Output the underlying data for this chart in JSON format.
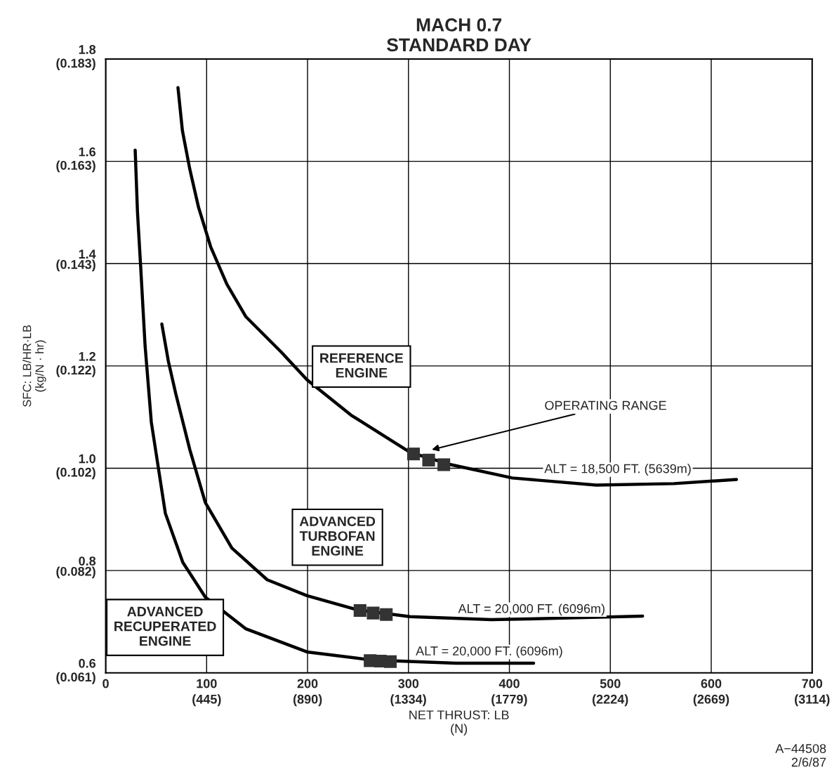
{
  "chart_data": {
    "type": "line",
    "title": "MACH 0.7\nSTANDARD DAY",
    "xlabel": "NET THRUST: LB\n(N)",
    "y2label": "SFC: LB/HR·LB\n(kg/N · hr)",
    "xlim": [
      0,
      700
    ],
    "ylim": [
      0.6,
      1.8
    ],
    "xticks": [
      0,
      100,
      200,
      300,
      400,
      500,
      600,
      700
    ],
    "yticks": [
      {
        "value": 0.6,
        "label": "0.6"
      },
      {
        "value": 0.8,
        "label": "0.8"
      },
      {
        "value": 1.0,
        "label": "1.0"
      },
      {
        "value": 1.2,
        "label": "1.2"
      },
      {
        "value": 1.4,
        "label": "1.4"
      },
      {
        "value": 1.6,
        "label": "1.6"
      },
      {
        "value": 1.8,
        "label": "1.8"
      }
    ],
    "x2lim": [
      0,
      3114
    ],
    "x2ticks": [
      {
        "value": 445,
        "label": "(445)"
      },
      {
        "value": 890,
        "label": "(890)"
      },
      {
        "value": 1334,
        "label": "(1334)"
      },
      {
        "value": 1779,
        "label": "(1779)"
      },
      {
        "value": 2224,
        "label": "(2224)"
      },
      {
        "value": 2669,
        "label": "(2669)"
      },
      {
        "value": 3114,
        "label": "(3114)"
      }
    ],
    "y2lim": [
      0.061,
      0.183
    ],
    "y2ticks": [
      {
        "value": 0.061,
        "label": "(0.061)"
      },
      {
        "value": 0.082,
        "label": "(0.082)"
      },
      {
        "value": 0.1017,
        "label": "(0.102)"
      },
      {
        "value": 0.122,
        "label": "(0.122)"
      },
      {
        "value": 0.143,
        "label": "(0.143)"
      },
      {
        "value": 0.1627,
        "label": "(0.163)"
      },
      {
        "value": 0.183,
        "label": "(0.183)"
      }
    ],
    "grid": true,
    "line_style": "solid",
    "series": [
      {
        "color": "#000000",
        "x": [
          71.6,
          76,
          83.4,
          92,
          104,
          120,
          139,
          174,
          199.4,
          243,
          301.6,
          340,
          403,
          486,
          563,
          625
        ],
        "values": [
          1.744,
          1.66,
          1.584,
          1.51,
          1.433,
          1.36,
          1.296,
          1.227,
          1.173,
          1.104,
          1.031,
          1.008,
          0.981,
          0.967,
          0.97,
          0.978
        ]
      },
      {
        "color": "#000000",
        "x": [
          55.6,
          62,
          69.5,
          83.4,
          98.7,
          125,
          160,
          199.4,
          250,
          301.6,
          382,
          452,
          532
        ],
        "values": [
          1.282,
          1.21,
          1.145,
          1.036,
          0.933,
          0.844,
          0.782,
          0.751,
          0.723,
          0.71,
          0.704,
          0.707,
          0.711
        ]
      },
      {
        "color": "#000000",
        "x": [
          29.2,
          31.5,
          34.7,
          39,
          45.2,
          59.1,
          76.4,
          98.7,
          139,
          199.4,
          264,
          347,
          424
        ],
        "values": [
          1.622,
          1.5,
          1.392,
          1.24,
          1.09,
          0.912,
          0.816,
          0.748,
          0.686,
          0.641,
          0.625,
          0.619,
          0.619
        ]
      },
      {
        "type": "scatter",
        "color": "#333333",
        "marker": "square",
        "x": [
          305,
          320,
          335
        ],
        "values": [
          1.028,
          1.016,
          1.007
        ]
      },
      {
        "type": "scatter",
        "color": "#333333",
        "marker": "square",
        "x": [
          252,
          265,
          278
        ],
        "values": [
          0.722,
          0.717,
          0.714
        ]
      },
      {
        "type": "scatter",
        "color": "#333333",
        "marker": "square",
        "x": [
          262,
          272,
          282
        ],
        "values": [
          0.624,
          0.623,
          0.622
        ]
      }
    ],
    "annotations": [
      "REFERENCE\nENGINE",
      "ADVANCED\nTURBOFAN\nENGINE",
      "ADVANCED\nRECUPERATED\nENGINE",
      "ALT = 18,500 FT. (5639m)",
      "ALT = 20,000 FT. (6096m)",
      "ALT = 20,000 FT. (6096m)",
      "OPERATING RANGE",
      "A−44508\n2/6/87"
    ]
  }
}
